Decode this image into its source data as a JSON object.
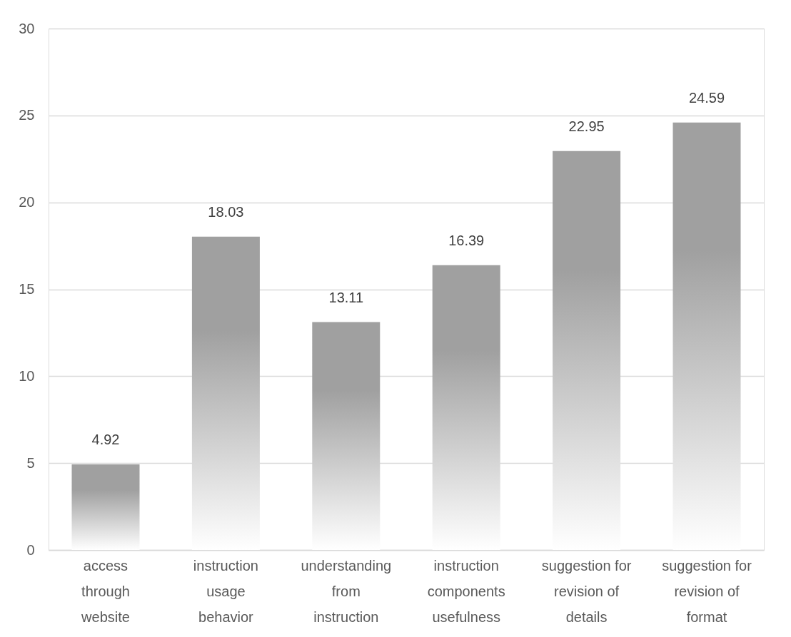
{
  "chart_data": {
    "type": "bar",
    "categories": [
      "access\nthrough\nwebsite",
      "instruction\nusage\nbehavior",
      "understanding\nfrom\ninstruction",
      "instruction\ncomponents\nusefulness",
      "suggestion for\nrevision of\ndetails",
      "suggestion for\nrevision of\nformat"
    ],
    "values": [
      4.92,
      18.03,
      13.11,
      16.39,
      22.95,
      24.59
    ],
    "color": "#a0a0a0",
    "ylim": [
      0,
      30
    ],
    "yticks": [
      0,
      5,
      10,
      15,
      20,
      25,
      30
    ],
    "grid": "y",
    "data_labels": true
  }
}
